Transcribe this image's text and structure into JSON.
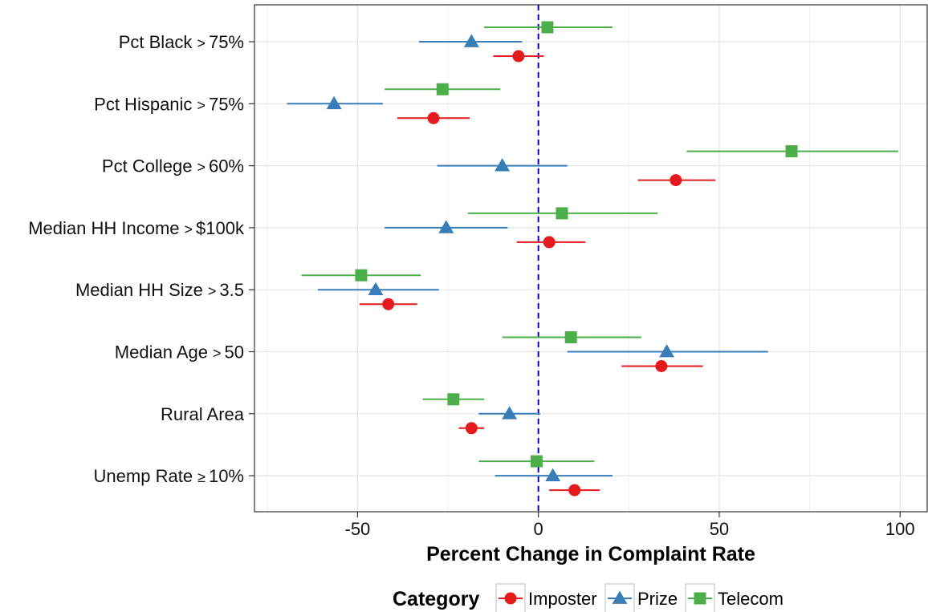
{
  "chart_data": {
    "type": "dot-errorbar",
    "xlabel": "Percent Change in Complaint Rate",
    "ylabel": "",
    "xlim": [
      -78.5,
      107.5
    ],
    "xticks": [
      -50,
      0,
      50,
      100
    ],
    "xtick_labels": [
      "-50",
      "0",
      "50",
      "100"
    ],
    "grid": true,
    "reference_line": {
      "x": 0,
      "style": "dashed",
      "color": "#0000CC"
    },
    "categories": [
      {
        "prefix": "Pct Black",
        "op": ">",
        "value": "75%"
      },
      {
        "prefix": "Pct Hispanic",
        "op": ">",
        "value": "75%"
      },
      {
        "prefix": "Pct College",
        "op": ">",
        "value": "60%"
      },
      {
        "prefix": "Median HH Income",
        "op": ">",
        "value": "$100k"
      },
      {
        "prefix": "Median HH Size",
        "op": ">",
        "value": "3.5"
      },
      {
        "prefix": "Median Age",
        "op": ">",
        "value": "50"
      },
      {
        "prefix": "Rural Area",
        "op": "",
        "value": ""
      },
      {
        "prefix": "Unemp Rate",
        "op": "≥",
        "value": "10%"
      }
    ],
    "series": [
      {
        "name": "Imposter",
        "color": "#E41A1C",
        "shape": "circle",
        "values": [
          {
            "est": -5.5,
            "lo": -12.5,
            "hi": 1.5
          },
          {
            "est": -29.0,
            "lo": -39.0,
            "hi": -19.0
          },
          {
            "est": 38.0,
            "lo": 27.5,
            "hi": 49.0
          },
          {
            "est": 3.0,
            "lo": -6.0,
            "hi": 13.0
          },
          {
            "est": -41.5,
            "lo": -49.5,
            "hi": -33.5
          },
          {
            "est": 34.0,
            "lo": 23.0,
            "hi": 45.5
          },
          {
            "est": -18.5,
            "lo": -22.0,
            "hi": -15.0
          },
          {
            "est": 10.0,
            "lo": 3.0,
            "hi": 17.0
          }
        ]
      },
      {
        "name": "Prize",
        "color": "#377EB8",
        "shape": "triangle",
        "values": [
          {
            "est": -18.5,
            "lo": -33.0,
            "hi": -4.5
          },
          {
            "est": -56.5,
            "lo": -69.5,
            "hi": -43.0
          },
          {
            "est": -10.0,
            "lo": -28.0,
            "hi": 8.0
          },
          {
            "est": -25.5,
            "lo": -42.5,
            "hi": -8.5
          },
          {
            "est": -45.0,
            "lo": -61.0,
            "hi": -27.5
          },
          {
            "est": 35.5,
            "lo": 8.0,
            "hi": 63.5
          },
          {
            "est": -8.0,
            "lo": -16.5,
            "hi": 0.5
          },
          {
            "est": 4.0,
            "lo": -12.0,
            "hi": 20.5
          }
        ]
      },
      {
        "name": "Telecom",
        "color": "#4DAF4A",
        "shape": "square",
        "values": [
          {
            "est": 2.5,
            "lo": -15.0,
            "hi": 20.5
          },
          {
            "est": -26.5,
            "lo": -42.5,
            "hi": -10.5
          },
          {
            "est": 70.0,
            "lo": 41.0,
            "hi": 99.5
          },
          {
            "est": 6.5,
            "lo": -19.5,
            "hi": 33.0
          },
          {
            "est": -49.0,
            "lo": -65.5,
            "hi": -32.5
          },
          {
            "est": 9.0,
            "lo": -10.0,
            "hi": 28.5
          },
          {
            "est": -23.5,
            "lo": -32.0,
            "hi": -15.0
          },
          {
            "est": -0.5,
            "lo": -16.5,
            "hi": 15.5
          }
        ]
      }
    ],
    "legend": {
      "title": "Category",
      "position": "bottom"
    }
  }
}
